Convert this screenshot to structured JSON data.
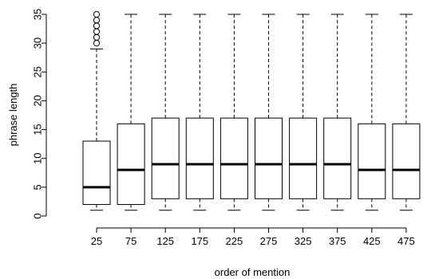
{
  "chart_data": {
    "type": "box",
    "title": "",
    "xlabel": "order of mention",
    "ylabel": "phrase length",
    "ylim": [
      0,
      35
    ],
    "yticks": [
      0,
      5,
      10,
      15,
      20,
      25,
      30,
      35
    ],
    "grid": false,
    "categories": [
      "25",
      "75",
      "125",
      "175",
      "225",
      "275",
      "325",
      "375",
      "425",
      "475"
    ],
    "boxes": [
      {
        "category": "25",
        "min": 1,
        "q1": 2,
        "median": 5,
        "q3": 13,
        "whisker_high": 29,
        "outliers": [
          30,
          31,
          32,
          33,
          34,
          35
        ]
      },
      {
        "category": "75",
        "min": 1,
        "q1": 2,
        "median": 8,
        "q3": 16,
        "whisker_high": 35,
        "outliers": []
      },
      {
        "category": "125",
        "min": 1,
        "q1": 3,
        "median": 9,
        "q3": 17,
        "whisker_high": 35,
        "outliers": []
      },
      {
        "category": "175",
        "min": 1,
        "q1": 3,
        "median": 9,
        "q3": 17,
        "whisker_high": 35,
        "outliers": []
      },
      {
        "category": "225",
        "min": 1,
        "q1": 3,
        "median": 9,
        "q3": 17,
        "whisker_high": 35,
        "outliers": []
      },
      {
        "category": "275",
        "min": 1,
        "q1": 3,
        "median": 9,
        "q3": 17,
        "whisker_high": 35,
        "outliers": []
      },
      {
        "category": "325",
        "min": 1,
        "q1": 3,
        "median": 9,
        "q3": 17,
        "whisker_high": 35,
        "outliers": []
      },
      {
        "category": "375",
        "min": 1,
        "q1": 3,
        "median": 9,
        "q3": 17,
        "whisker_high": 35,
        "outliers": []
      },
      {
        "category": "425",
        "min": 1,
        "q1": 3,
        "median": 8,
        "q3": 16,
        "whisker_high": 35,
        "outliers": []
      },
      {
        "category": "475",
        "min": 1,
        "q1": 3,
        "median": 8,
        "q3": 16,
        "whisker_high": 35,
        "outliers": []
      }
    ]
  }
}
